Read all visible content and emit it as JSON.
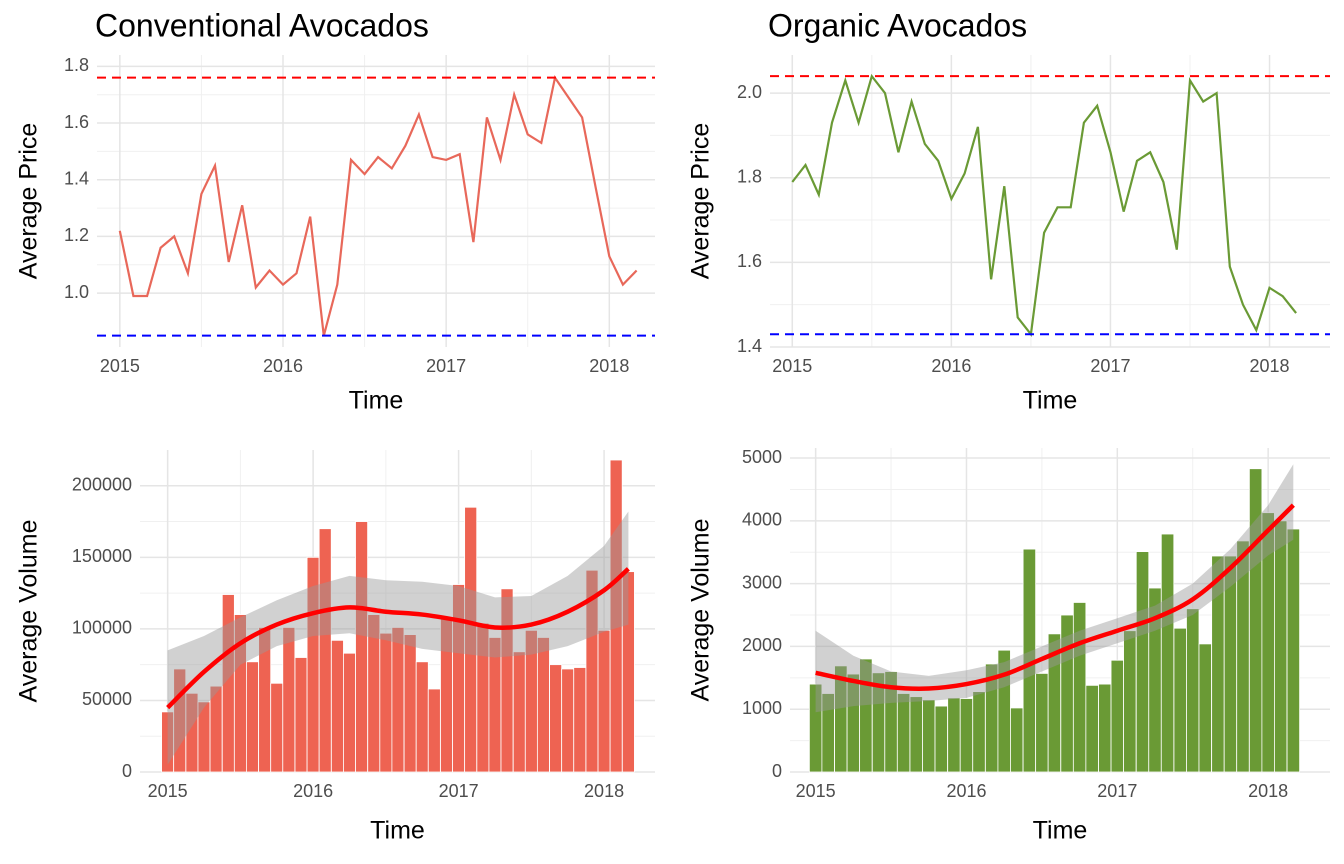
{
  "chart_data": [
    {
      "type": "line",
      "title": "Conventional Avocados",
      "xlabel": "Time",
      "ylabel": "Average Price",
      "color": "#e8685a",
      "x": [
        2015,
        2015.083,
        2015.167,
        2015.25,
        2015.333,
        2015.417,
        2015.5,
        2015.583,
        2015.667,
        2015.75,
        2015.833,
        2015.917,
        2016,
        2016.083,
        2016.167,
        2016.25,
        2016.333,
        2016.417,
        2016.5,
        2016.583,
        2016.667,
        2016.75,
        2016.833,
        2016.917,
        2017,
        2017.083,
        2017.167,
        2017.25,
        2017.333,
        2017.417,
        2017.5,
        2017.583,
        2017.667,
        2017.75,
        2017.833,
        2017.917,
        2018,
        2018.083,
        2018.167
      ],
      "values": [
        1.22,
        0.99,
        0.99,
        1.16,
        1.2,
        1.07,
        1.35,
        1.45,
        1.11,
        1.31,
        1.02,
        1.08,
        1.03,
        1.07,
        1.27,
        0.85,
        1.03,
        1.47,
        1.42,
        1.48,
        1.44,
        1.52,
        1.63,
        1.48,
        1.47,
        1.49,
        1.18,
        1.62,
        1.47,
        1.7,
        1.56,
        1.53,
        1.76,
        1.69,
        1.62,
        1.37,
        1.13,
        1.03,
        1.08
      ],
      "hlines": [
        {
          "value": 1.76,
          "color": "#ff0000"
        },
        {
          "value": 0.85,
          "color": "#0000ff"
        }
      ],
      "xlim": [
        2014.86,
        2018.28
      ],
      "xticks": [
        2015,
        2016,
        2017,
        2018
      ],
      "ylim": [
        0.81,
        1.84
      ],
      "yticks": [
        {
          "value": 1,
          "label": "1.0"
        },
        1.2,
        1.4,
        1.6,
        1.8
      ],
      "grid": true
    },
    {
      "type": "line",
      "title": "Organic Avocados",
      "xlabel": "Time",
      "ylabel": "Average Price",
      "color": "#6a9a35",
      "x": [
        2015,
        2015.083,
        2015.167,
        2015.25,
        2015.333,
        2015.417,
        2015.5,
        2015.583,
        2015.667,
        2015.75,
        2015.833,
        2015.917,
        2016,
        2016.083,
        2016.167,
        2016.25,
        2016.333,
        2016.417,
        2016.5,
        2016.583,
        2016.667,
        2016.75,
        2016.833,
        2016.917,
        2017,
        2017.083,
        2017.167,
        2017.25,
        2017.333,
        2017.417,
        2017.5,
        2017.583,
        2017.667,
        2017.75,
        2017.833,
        2017.917,
        2018,
        2018.083,
        2018.167
      ],
      "values": [
        1.79,
        1.83,
        1.76,
        1.93,
        2.03,
        1.93,
        2.04,
        2.0,
        1.86,
        1.98,
        1.88,
        1.84,
        1.75,
        1.81,
        1.92,
        1.56,
        1.78,
        1.47,
        1.43,
        1.67,
        1.73,
        1.73,
        1.93,
        1.97,
        1.86,
        1.72,
        1.84,
        1.86,
        1.79,
        1.63,
        2.03,
        1.98,
        2.0,
        1.59,
        1.5,
        1.44,
        1.54,
        1.52,
        1.48
      ],
      "hlines": [
        {
          "value": 2.04,
          "color": "#ff0000"
        },
        {
          "value": 1.43,
          "color": "#0000ff"
        }
      ],
      "xlim": [
        2014.86,
        2018.38
      ],
      "xticks": [
        2015,
        2016,
        2017,
        2018
      ],
      "ylim": [
        1.4,
        2.09
      ],
      "yticks": [
        1.4,
        1.6,
        1.8,
        {
          "value": 2,
          "label": "2.0"
        }
      ],
      "grid": true
    },
    {
      "type": "bar",
      "xlabel": "Time",
      "ylabel": "Average Volume",
      "color": "#ee6352",
      "x": [
        2015,
        2015.083,
        2015.167,
        2015.25,
        2015.333,
        2015.417,
        2015.5,
        2015.583,
        2015.667,
        2015.75,
        2015.833,
        2015.917,
        2016,
        2016.083,
        2016.167,
        2016.25,
        2016.333,
        2016.417,
        2016.5,
        2016.583,
        2016.667,
        2016.75,
        2016.833,
        2016.917,
        2017,
        2017.083,
        2017.167,
        2017.25,
        2017.333,
        2017.417,
        2017.5,
        2017.583,
        2017.667,
        2017.75,
        2017.833,
        2017.917,
        2018,
        2018.083,
        2018.167
      ],
      "values": [
        42000,
        72000,
        55000,
        49000,
        60000,
        124000,
        110000,
        77000,
        101000,
        62000,
        101000,
        80000,
        150000,
        170000,
        92000,
        83000,
        175000,
        110000,
        97000,
        101000,
        96000,
        77000,
        58000,
        108000,
        131000,
        185000,
        104000,
        94000,
        128000,
        84000,
        99000,
        94000,
        75000,
        72000,
        73000,
        141000,
        99000,
        218000,
        140000
      ],
      "smooth": {
        "color": "#ff0000",
        "band_color": "#999999",
        "x": [
          2015,
          2015.25,
          2015.5,
          2015.75,
          2016,
          2016.25,
          2016.5,
          2016.75,
          2017,
          2017.25,
          2017.5,
          2017.75,
          2018,
          2018.167
        ],
        "values": [
          45000,
          70000,
          90000,
          103000,
          111000,
          115000,
          112000,
          110000,
          106000,
          101000,
          103000,
          112000,
          127000,
          142000
        ],
        "lower": [
          5000,
          45000,
          75000,
          88000,
          95000,
          97000,
          92000,
          86000,
          83000,
          80000,
          82000,
          88000,
          98000,
          103000
        ],
        "upper": [
          85000,
          95000,
          108000,
          120000,
          130000,
          137000,
          134000,
          133000,
          130000,
          122000,
          123000,
          137000,
          158000,
          182000
        ]
      },
      "xlim": [
        2014.81,
        2018.35
      ],
      "xticks": [
        2015,
        2016,
        2017,
        2018
      ],
      "ylim": [
        0,
        225000
      ],
      "yticks": [
        0,
        50000,
        100000,
        150000,
        200000
      ],
      "grid": true
    },
    {
      "type": "bar",
      "xlabel": "Time",
      "ylabel": "Average Volume",
      "color": "#6a9a35",
      "x": [
        2015,
        2015.083,
        2015.167,
        2015.25,
        2015.333,
        2015.417,
        2015.5,
        2015.583,
        2015.667,
        2015.75,
        2015.833,
        2015.917,
        2016,
        2016.083,
        2016.167,
        2016.25,
        2016.333,
        2016.417,
        2016.5,
        2016.583,
        2016.667,
        2016.75,
        2016.833,
        2016.917,
        2017,
        2017.083,
        2017.167,
        2017.25,
        2017.333,
        2017.417,
        2017.5,
        2017.583,
        2017.667,
        2017.75,
        2017.833,
        2017.917,
        2018,
        2018.083,
        2018.167
      ],
      "values": [
        1400,
        1250,
        1690,
        1560,
        1800,
        1580,
        1600,
        1250,
        1200,
        1150,
        1050,
        1180,
        1170,
        1280,
        1720,
        1940,
        1020,
        3550,
        1570,
        2200,
        2500,
        2700,
        1380,
        1400,
        1780,
        2250,
        3510,
        2930,
        3790,
        2290,
        2600,
        2040,
        3440,
        3440,
        3680,
        4830,
        4130,
        4000,
        3870
      ],
      "smooth": {
        "color": "#ff0000",
        "band_color": "#999999",
        "x": [
          2015,
          2015.25,
          2015.5,
          2015.75,
          2016,
          2016.25,
          2016.5,
          2016.75,
          2017,
          2017.25,
          2017.5,
          2017.75,
          2018,
          2018.167
        ],
        "values": [
          1580,
          1450,
          1350,
          1330,
          1400,
          1550,
          1800,
          2050,
          2250,
          2450,
          2750,
          3250,
          3850,
          4250
        ],
        "lower": [
          950,
          1050,
          1100,
          1130,
          1180,
          1350,
          1600,
          1850,
          2050,
          2250,
          2500,
          2950,
          3450,
          3700
        ],
        "upper": [
          2250,
          1850,
          1600,
          1530,
          1620,
          1750,
          2000,
          2250,
          2450,
          2650,
          3000,
          3550,
          4250,
          4900
        ]
      },
      "xlim": [
        2014.83,
        2018.41
      ],
      "xticks": [
        2015,
        2016,
        2017,
        2018
      ],
      "ylim": [
        0,
        5160
      ],
      "yticks": [
        0,
        1000,
        2000,
        3000,
        4000,
        5000
      ],
      "grid": true
    }
  ]
}
